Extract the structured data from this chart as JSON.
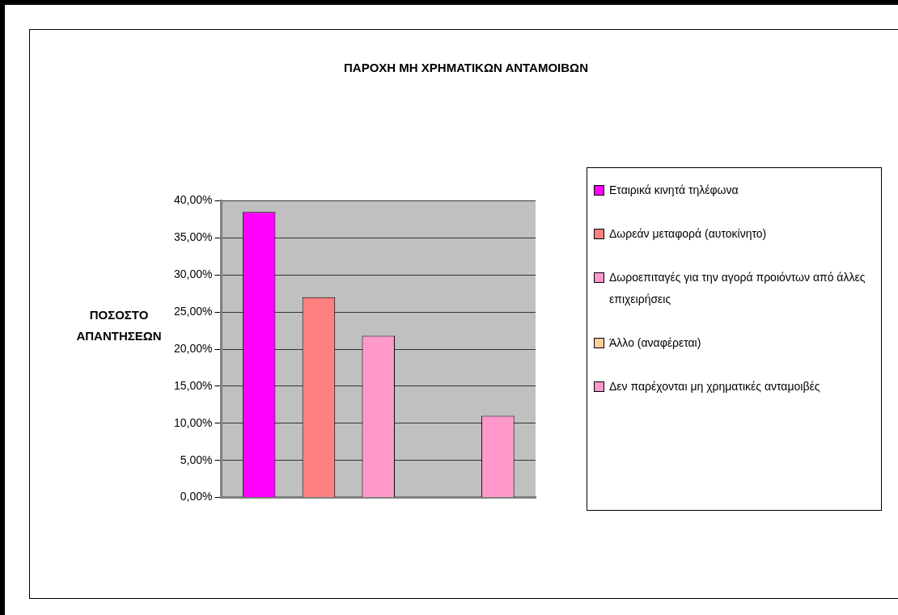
{
  "chart_data": {
    "type": "bar",
    "title": "ΠΑΡΟΧΗ ΜΗ ΧΡΗΜΑΤΙΚΩΝ ΑΝΤΑΜΟΙΒΩΝ",
    "ylabel": "ΠΟΣΟΣΤΟ ΑΠΑΝΤΗΣΕΩΝ",
    "categories": [
      null
    ],
    "series": [
      {
        "name": "Εταιρικά κινητά τηλέφωνα",
        "color": "#ff00ff",
        "values": [
          38.5
        ]
      },
      {
        "name": "Δωρεάν μεταφορά (αυτοκίνητο)",
        "color": "#ff8080",
        "values": [
          27
        ]
      },
      {
        "name": "Δωροεπιταγές για την αγορά προιόντων από άλλες επιχειρήσεις",
        "color": "#ff99cc",
        "values": [
          21.8
        ]
      },
      {
        "name": "Άλλο (αναφέρεται)",
        "color": "#ffcc99",
        "values": [
          0
        ]
      },
      {
        "name": "Δεν παρέχονται μη χρηματικές ανταμοιβές",
        "color": "#ff99cc",
        "values": [
          11
        ]
      }
    ],
    "ylim": [
      0,
      40
    ],
    "yticks": [
      {
        "value": 0,
        "label": "0,00%"
      },
      {
        "value": 5,
        "label": "5,00%"
      },
      {
        "value": 10,
        "label": "10,00%"
      },
      {
        "value": 15,
        "label": "15,00%"
      },
      {
        "value": 20,
        "label": "20,00%"
      },
      {
        "value": 25,
        "label": "25,00%"
      },
      {
        "value": 30,
        "label": "30,00%"
      },
      {
        "value": 35,
        "label": "35,00%"
      },
      {
        "value": 40,
        "label": "40,00%"
      }
    ],
    "grid": "y",
    "legend": "right"
  }
}
